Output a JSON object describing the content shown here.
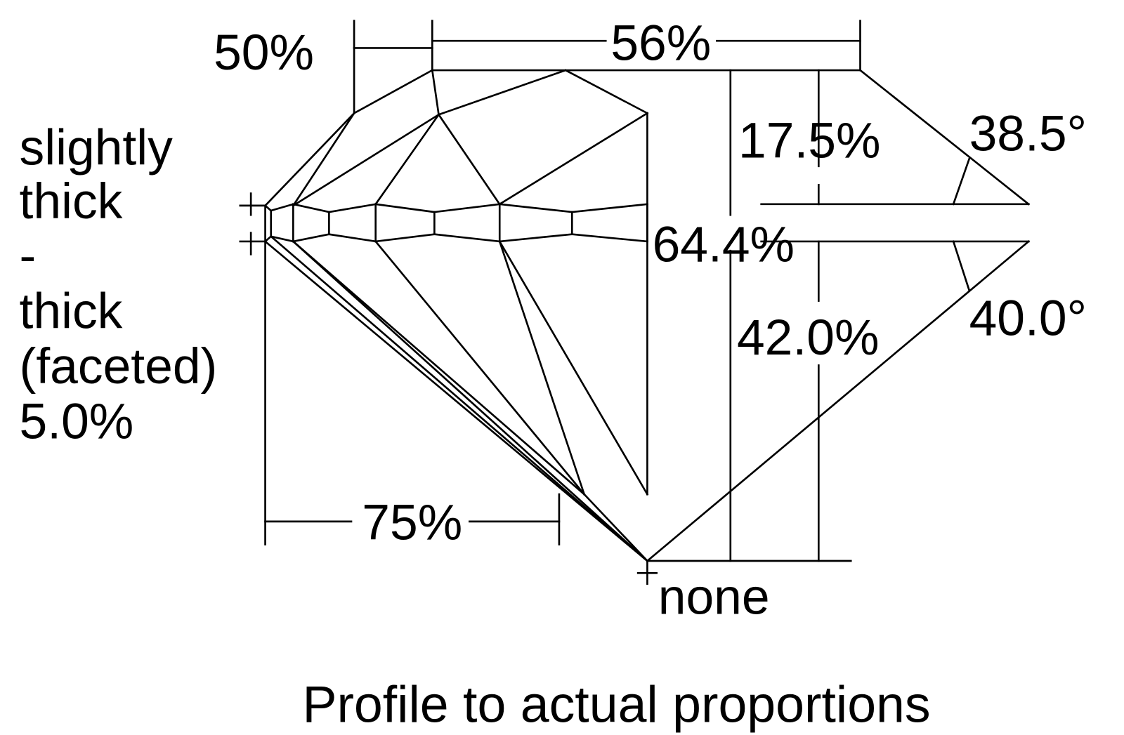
{
  "labels": {
    "table_to_star": "50%",
    "table_percent": "56%",
    "girdle_lines": [
      "slightly",
      "thick",
      "-",
      "thick",
      "(faceted)",
      "5.0%"
    ],
    "crown_height": "17.5%",
    "crown_angle": "38.5°",
    "total_depth": "64.4%",
    "pavilion_depth": "42.0%",
    "pavilion_angle": "40.0°",
    "lower_half": "75%",
    "culet": "none"
  },
  "caption": "Profile to actual proportions"
}
